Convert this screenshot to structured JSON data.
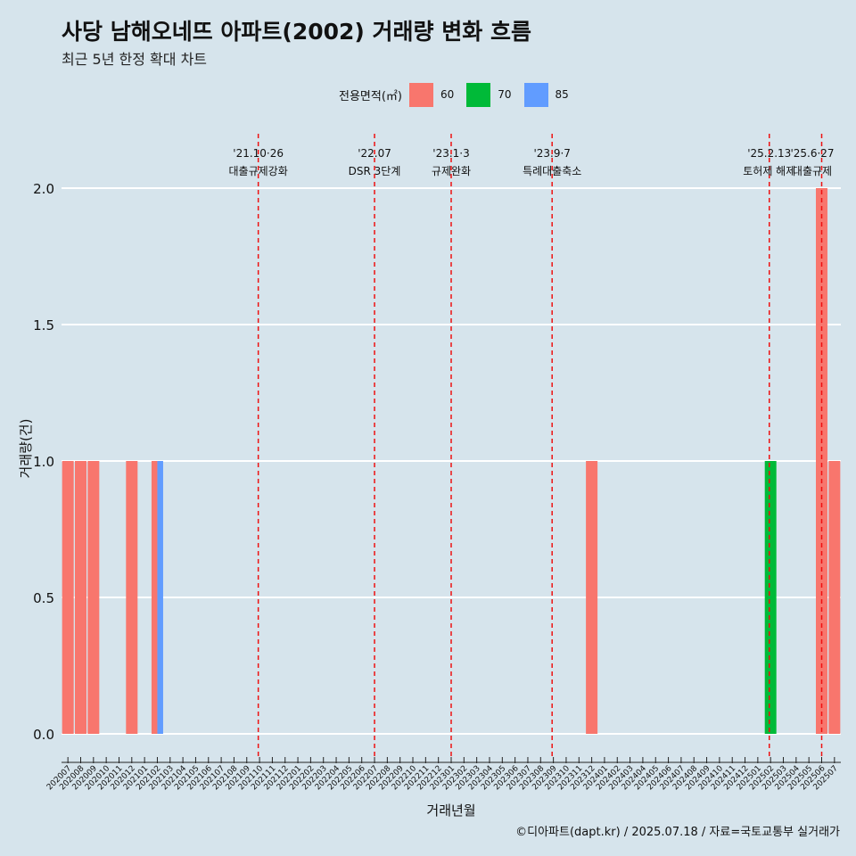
{
  "header": {
    "title": "사당 남해오네뜨 아파트(2002) 거래량 변화 흐름",
    "subtitle": "최근 5년 한정 확대 차트"
  },
  "legend": {
    "title": "전용면적(㎡)",
    "items": [
      {
        "label": "60",
        "color": "#f8766d"
      },
      {
        "label": "70",
        "color": "#00ba38"
      },
      {
        "label": "85",
        "color": "#619cff"
      }
    ]
  },
  "caption": "©디아파트(dapt.kr) / 2025.07.18 / 자료=국토교통부 실거래가",
  "chart_data": {
    "type": "bar",
    "xlabel": "거래년월",
    "ylabel": "거래량(건)",
    "ylim": [
      0,
      2
    ],
    "yticks": [
      0.0,
      0.5,
      1.0,
      1.5,
      2.0
    ],
    "ytick_labels": [
      "0.0",
      "0.5",
      "1.0",
      "1.5",
      "2.0"
    ],
    "grid": true,
    "legend_position": "top",
    "categories": [
      "202007",
      "202008",
      "202009",
      "202010",
      "202011",
      "202012",
      "202101",
      "202102",
      "202103",
      "202104",
      "202105",
      "202106",
      "202107",
      "202108",
      "202109",
      "202110",
      "202111",
      "202112",
      "202201",
      "202202",
      "202203",
      "202204",
      "202205",
      "202206",
      "202207",
      "202208",
      "202209",
      "202210",
      "202211",
      "202212",
      "202301",
      "202302",
      "202303",
      "202304",
      "202305",
      "202306",
      "202307",
      "202308",
      "202309",
      "202310",
      "202311",
      "202312",
      "202401",
      "202402",
      "202403",
      "202404",
      "202405",
      "202406",
      "202407",
      "202408",
      "202409",
      "202410",
      "202411",
      "202412",
      "202501",
      "202502",
      "202503",
      "202504",
      "202505",
      "202506",
      "202507"
    ],
    "bars": [
      {
        "month": "202007",
        "area": "60",
        "value": 1
      },
      {
        "month": "202008",
        "area": "60",
        "value": 1
      },
      {
        "month": "202009",
        "area": "60",
        "value": 1
      },
      {
        "month": "202012",
        "area": "60",
        "value": 1
      },
      {
        "month": "202102",
        "area": "60",
        "value": 1
      },
      {
        "month": "202102",
        "area": "85",
        "value": 1
      },
      {
        "month": "202312",
        "area": "60",
        "value": 1
      },
      {
        "month": "202502",
        "area": "70",
        "value": 1
      },
      {
        "month": "202506",
        "area": "60",
        "value": 2
      },
      {
        "month": "202507",
        "area": "60",
        "value": 1
      }
    ],
    "annotations": [
      {
        "month": "202110",
        "offset": -0.1,
        "line1": "'21.10·26",
        "line2": "대출규제강화"
      },
      {
        "month": "202207",
        "offset": 0,
        "line1": "'22.07",
        "line2": "DSR 3단계"
      },
      {
        "month": "202301",
        "offset": 0,
        "line1": "'23.1·3",
        "line2": "규제완화"
      },
      {
        "month": "202309",
        "offset": -0.1,
        "line1": "'23.9·7",
        "line2": "특례대출축소"
      },
      {
        "month": "202502",
        "offset": -0.1,
        "line1": "'25.2.13",
        "line2": "토허제 해제"
      },
      {
        "month": "202506",
        "offset": 0,
        "line1": "'25.6·27",
        "line2": "대출규제"
      }
    ]
  }
}
